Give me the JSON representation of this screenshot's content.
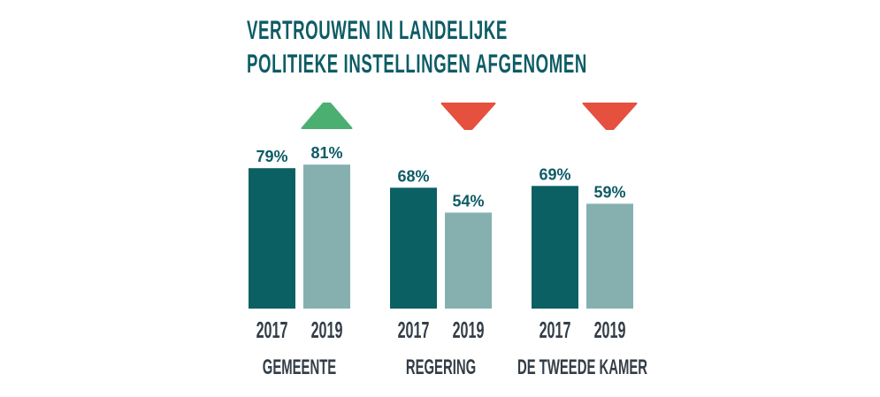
{
  "chart_data": {
    "type": "bar",
    "title": [
      "VERTROUWEN IN LANDELIJKE",
      "POLITIEKE INSTELLINGEN AFGENOMEN"
    ],
    "categories": [
      "GEMEENTE",
      "REGERING",
      "DE TWEEDE KAMER"
    ],
    "series": [
      {
        "name": "2017",
        "values": [
          79,
          68,
          69
        ],
        "labels": [
          "79%",
          "68%",
          "69%"
        ],
        "color": "#0b6063"
      },
      {
        "name": "2019",
        "values": [
          81,
          54,
          59
        ],
        "labels": [
          "81%",
          "54%",
          "59%"
        ],
        "color": "#86b0b0"
      }
    ],
    "trend": [
      "up",
      "down",
      "down"
    ],
    "trend_colors": {
      "up": "#4caf72",
      "down": "#e5503f"
    },
    "ylim": [
      0,
      100
    ],
    "grid": false,
    "xlabel": "",
    "ylabel": ""
  }
}
